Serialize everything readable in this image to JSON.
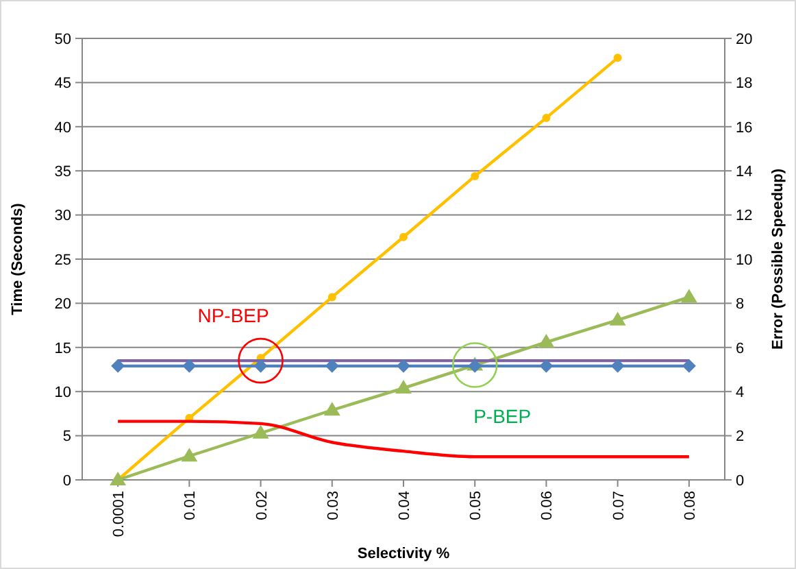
{
  "chart_data": {
    "type": "line",
    "xlabel": "Selectivity %",
    "ylabel": "Time (Seconds)",
    "y2label": "Error (Possible Speedup)",
    "categories": [
      "0.0001",
      "0.01",
      "0.02",
      "0.03",
      "0.04",
      "0.05",
      "0.06",
      "0.07",
      "0.08"
    ],
    "series": [
      {
        "color": "#ffc000",
        "marker": "circle",
        "values": [
          0,
          7,
          13.8,
          20.7,
          27.5,
          34.4,
          41,
          47.8,
          null
        ]
      },
      {
        "color": "#9bbb59",
        "marker": "triangle",
        "values": [
          0,
          2.7,
          5.3,
          7.9,
          10.4,
          13,
          15.6,
          18.1,
          20.7
        ]
      },
      {
        "color": "#8064a2",
        "marker": "none",
        "values": [
          13.5,
          13.5,
          13.5,
          13.5,
          13.5,
          13.5,
          13.5,
          13.5,
          13.5
        ]
      },
      {
        "color": "#4f81bd",
        "marker": "diamond",
        "values": [
          12.9,
          12.9,
          12.9,
          12.9,
          12.9,
          12.9,
          12.9,
          12.9,
          12.9
        ]
      },
      {
        "color": "#ff0000",
        "marker": "none",
        "axis": "y2",
        "values": [
          2.65,
          2.65,
          2.55,
          1.7,
          1.3,
          1.05,
          1.05,
          1.05,
          1.05
        ]
      }
    ],
    "ylim": [
      0,
      50
    ],
    "yticks": [
      0,
      5,
      10,
      15,
      20,
      25,
      30,
      35,
      40,
      45,
      50
    ],
    "y2lim": [
      0,
      20
    ],
    "y2ticks": [
      0,
      2,
      4,
      6,
      8,
      10,
      12,
      14,
      16,
      18,
      20
    ],
    "grid": "y",
    "annotations": [
      {
        "text": "NP-BEP",
        "x": "0.02",
        "y": 13.5
      },
      {
        "text": "P-BEP",
        "x": "0.05",
        "y": 13
      }
    ]
  }
}
